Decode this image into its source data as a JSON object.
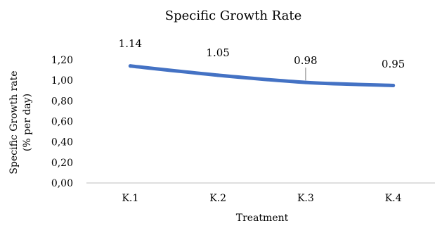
{
  "chart_data": {
    "type": "line",
    "title": "Specific Growth Rate",
    "xlabel": "Treatment",
    "ylabel_lines": [
      "Specific Growth rate",
      "(% per day)"
    ],
    "categories": [
      "K.1",
      "K.2",
      "K.3",
      "K.4"
    ],
    "series": [
      {
        "values": [
          1.14,
          1.05,
          0.98,
          0.95
        ],
        "data_labels": [
          "1.14",
          "1.05",
          "0.98",
          "0.95"
        ],
        "color": "#4472C4"
      }
    ],
    "ylim": [
      0,
      1.2
    ],
    "yticks": [
      0,
      0.2,
      0.4,
      0.6,
      0.8,
      1.0,
      1.2
    ],
    "ytick_labels": [
      "0,00",
      "0,20",
      "0,40",
      "0,60",
      "0,80",
      "1,00",
      "1,20"
    ],
    "grid": false,
    "legend": "none",
    "axis_color": "#BFBFBF",
    "leader_line_color": "#A6A6A6"
  }
}
